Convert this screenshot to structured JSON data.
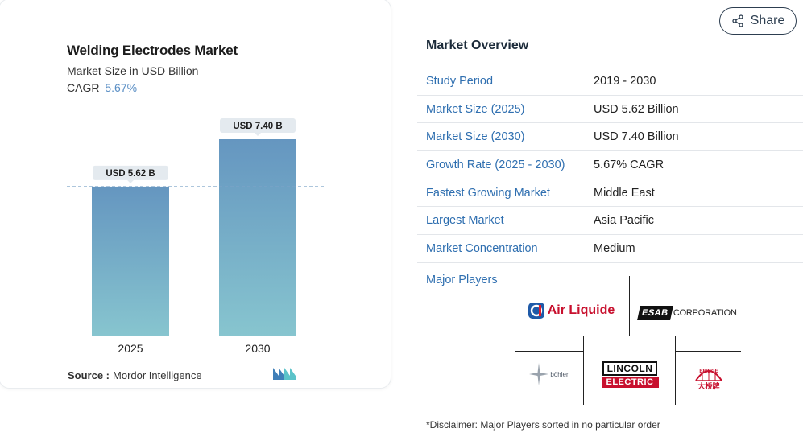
{
  "chart": {
    "title": "Welding Electrodes Market",
    "subtitle": "Market Size in USD Billion",
    "cagr_label": "CAGR",
    "cagr_value": "5.67%",
    "source_label": "Source :",
    "source_value": "Mordor Intelligence"
  },
  "chart_data": {
    "type": "bar",
    "categories": [
      "2025",
      "2030"
    ],
    "values": [
      5.62,
      7.4
    ],
    "data_labels": [
      "USD 5.62 B",
      "USD 7.40 B"
    ],
    "title": "Welding Electrodes Market",
    "subtitle": "Market Size in USD Billion",
    "ylim": [
      0,
      7.4
    ],
    "reference_line_value": 5.62,
    "grid": false,
    "colors": {
      "bar_top": "#6596c0",
      "bar_bottom": "#87c5cf",
      "label_bg": "#e4eaef",
      "ref_line": "#7ca4c8"
    }
  },
  "share": {
    "label": "Share"
  },
  "overview": {
    "title": "Market Overview",
    "rows": [
      {
        "key": "Study Period",
        "value": "2019 - 2030"
      },
      {
        "key": "Market Size (2025)",
        "value": "USD 5.62 Billion"
      },
      {
        "key": "Market Size (2030)",
        "value": "USD 7.40 Billion"
      },
      {
        "key": "Growth Rate (2025 - 2030)",
        "value": "5.67% CAGR"
      },
      {
        "key": "Fastest Growing Market",
        "value": "Middle East"
      },
      {
        "key": "Largest Market",
        "value": "Asia Pacific"
      },
      {
        "key": "Market Concentration",
        "value": "Medium"
      }
    ]
  },
  "players": {
    "title": "Major Players",
    "air_liquide": "Air Liquide",
    "esab_mark": "ESAB",
    "esab_word": "CORPORATION",
    "lincoln_top": "LINCOLN",
    "lincoln_bottom": "ELECTRIC",
    "bohler": "böhler",
    "bridge": "BRIDGE",
    "bridge_cn": "大桥牌"
  },
  "disclaimer": "*Disclaimer: Major Players sorted in no particular order"
}
